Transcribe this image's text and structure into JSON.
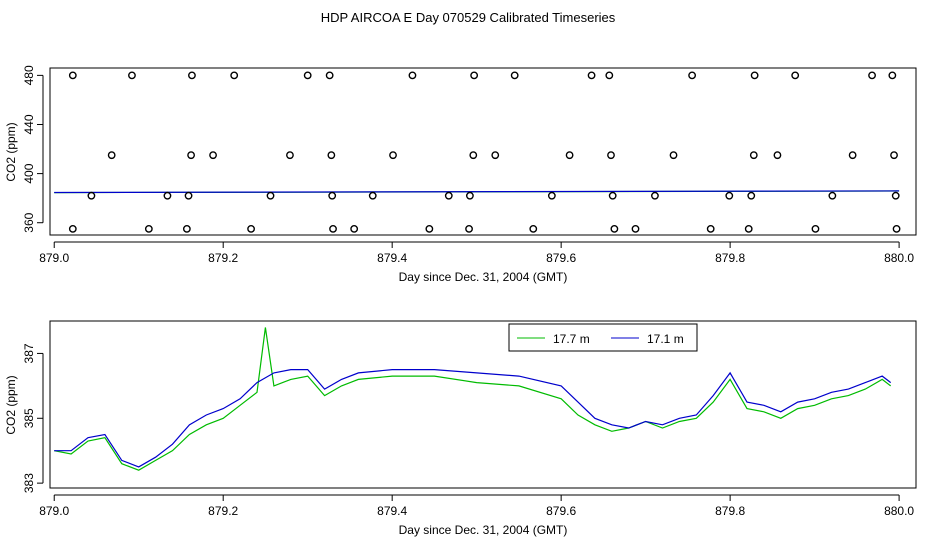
{
  "figure": {
    "title": "HDP AIRCOA E  Day 070529  Calibrated Timeseries"
  },
  "chart_data": [
    {
      "type": "scatter",
      "xlabel": "Day since Dec. 31, 2004 (GMT)",
      "ylabel": "CO2 (ppm)",
      "xlim": [
        878.995,
        880.02
      ],
      "ylim": [
        350,
        486
      ],
      "xticks": [
        879.0,
        879.2,
        879.4,
        879.6,
        879.8,
        880.0
      ],
      "xtick_labels": [
        "879.0",
        "879.2",
        "879.4",
        "879.6",
        "879.8",
        "880.0"
      ],
      "yticks": [
        360,
        400,
        440,
        480
      ],
      "ytick_labels": [
        "360",
        "400",
        "440",
        "480"
      ],
      "grid": false,
      "points": {
        "x": [
          879.022,
          879.092,
          879.163,
          879.213,
          879.3,
          879.326,
          879.424,
          879.497,
          879.545,
          879.636,
          879.657,
          879.755,
          879.829,
          879.877,
          879.968,
          879.992,
          879.068,
          879.162,
          879.188,
          879.279,
          879.328,
          879.401,
          879.496,
          879.522,
          879.61,
          879.659,
          879.733,
          879.828,
          879.856,
          879.945,
          879.994,
          879.044,
          879.134,
          879.159,
          879.256,
          879.329,
          879.377,
          879.467,
          879.492,
          879.589,
          879.661,
          879.711,
          879.799,
          879.825,
          879.921,
          879.996,
          879.022,
          879.112,
          879.157,
          879.233,
          879.33,
          879.355,
          879.444,
          879.491,
          879.567,
          879.663,
          879.688,
          879.777,
          879.822,
          879.901,
          879.997
        ],
        "y": [
          480,
          480,
          480,
          480,
          480,
          480,
          480,
          480,
          480,
          480,
          480,
          480,
          480,
          480,
          480,
          480,
          415,
          415,
          415,
          415,
          415,
          415,
          415,
          415,
          415,
          415,
          415,
          415,
          415,
          415,
          415,
          382,
          382,
          382,
          382,
          382,
          382,
          382,
          382,
          382,
          382,
          382,
          382,
          382,
          382,
          382,
          355,
          355,
          355,
          355,
          355,
          355,
          355,
          355,
          355,
          355,
          355,
          355,
          355,
          355,
          355
        ]
      },
      "series": [
        {
          "color": "#00bb00",
          "x": [
            879.0,
            880.0
          ],
          "y": [
            384.5,
            385.8
          ]
        },
        {
          "color": "#0000cc",
          "x": [
            879.0,
            880.0
          ],
          "y": [
            384.6,
            385.9
          ]
        }
      ]
    },
    {
      "type": "line",
      "xlabel": "Day since Dec. 31, 2004 (GMT)",
      "ylabel": "CO2 (ppm)",
      "xlim": [
        878.995,
        880.02
      ],
      "ylim": [
        382.85,
        388.0
      ],
      "xticks": [
        879.0,
        879.2,
        879.4,
        879.6,
        879.8,
        880.0
      ],
      "xtick_labels": [
        "879.0",
        "879.2",
        "879.4",
        "879.6",
        "879.8",
        "880.0"
      ],
      "yticks": [
        383,
        385,
        387
      ],
      "ytick_labels": [
        "383",
        "385",
        "387"
      ],
      "grid": false,
      "legend_position": "top-center",
      "series": [
        {
          "name": "17.7 m",
          "color": "#00bb00",
          "x": [
            879.0,
            879.02,
            879.04,
            879.06,
            879.08,
            879.1,
            879.12,
            879.14,
            879.16,
            879.18,
            879.2,
            879.22,
            879.24,
            879.25,
            879.26,
            879.28,
            879.3,
            879.32,
            879.34,
            879.36,
            879.4,
            879.45,
            879.5,
            879.55,
            879.6,
            879.62,
            879.64,
            879.66,
            879.68,
            879.7,
            879.72,
            879.74,
            879.76,
            879.78,
            879.8,
            879.82,
            879.84,
            879.86,
            879.88,
            879.9,
            879.92,
            879.94,
            879.96,
            879.98,
            879.99
          ],
          "y": [
            384.0,
            383.9,
            384.3,
            384.4,
            383.6,
            383.4,
            383.7,
            384.0,
            384.5,
            384.8,
            385.0,
            385.4,
            385.8,
            387.8,
            386.0,
            386.2,
            386.3,
            385.7,
            386.0,
            386.2,
            386.3,
            386.3,
            386.1,
            386.0,
            385.6,
            385.1,
            384.8,
            384.6,
            384.7,
            384.9,
            384.7,
            384.9,
            385.0,
            385.5,
            386.2,
            385.3,
            385.2,
            385.0,
            385.3,
            385.4,
            385.6,
            385.7,
            385.9,
            386.2,
            386.0
          ]
        },
        {
          "name": "17.1 m",
          "color": "#0000cc",
          "x": [
            879.0,
            879.02,
            879.04,
            879.06,
            879.08,
            879.1,
            879.12,
            879.14,
            879.16,
            879.18,
            879.2,
            879.22,
            879.24,
            879.26,
            879.28,
            879.3,
            879.32,
            879.34,
            879.36,
            879.4,
            879.45,
            879.5,
            879.55,
            879.6,
            879.62,
            879.64,
            879.66,
            879.68,
            879.7,
            879.72,
            879.74,
            879.76,
            879.78,
            879.8,
            879.82,
            879.84,
            879.86,
            879.88,
            879.9,
            879.92,
            879.94,
            879.96,
            879.98,
            879.99
          ],
          "y": [
            384.0,
            384.0,
            384.4,
            384.5,
            383.7,
            383.5,
            383.8,
            384.2,
            384.8,
            385.1,
            385.3,
            385.6,
            386.1,
            386.4,
            386.5,
            386.5,
            385.9,
            386.2,
            386.4,
            386.5,
            386.5,
            386.4,
            386.3,
            386.0,
            385.5,
            385.0,
            384.8,
            384.7,
            384.9,
            384.8,
            385.0,
            385.1,
            385.7,
            386.4,
            385.5,
            385.4,
            385.2,
            385.5,
            385.6,
            385.8,
            385.9,
            386.1,
            386.3,
            386.1
          ]
        }
      ]
    }
  ]
}
